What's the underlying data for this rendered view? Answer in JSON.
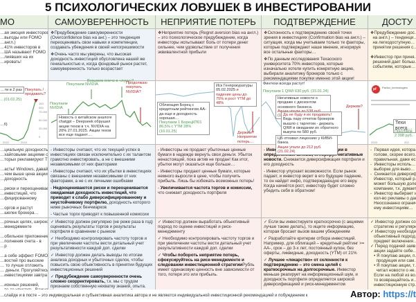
{
  "title": "5 ПСИХОЛОГИЧЕСКИХ ЛОВУШЕК В ИНВЕСТИРОВАНИИ",
  "columns": [
    {
      "header": "МО",
      "row1": "…ая эмоция инвесторов\n…выгоды или FOMO\n…англ.)\n…41% инвесторов в\n…ША называют FOMO\n…лиявших на их\n…ировать!",
      "chart": {
        "note": "…ти в 2 раз",
        "date": "…(01.02.25)",
        "question": "Покупать / продавать?",
        "yticks": [
          "100 000",
          "75 000",
          "50 000",
          "25 000",
          "0"
        ],
        "xticks": [
          "2022",
          "2024"
        ],
        "tail": "…б)"
      },
      "row2": "…циальную доходность\n…хайповыми акциями с\n…торых рекламируют ТГ-\n\n…асты! Windows, давай\n…чем выше цена акции,\n…доходность\n\n…риски и переоценивает\n…инвестиций, что\n…фицированному\n\n…оргов и растут\n…шелек брокера…",
      "row3": "…рочных целях, широкой\n…менеджменте\n\n…обильное приложение\n…полнения счета - в\n…р\n\n…а себе эффект FOMO,\n…востей про высокие\n… то лучше отложить\n… деньги. Прогуляйтесь\n…инвестициями завтра\n\n…ионных решений,\n…то-то упустить. Важно\n… рынке, а не выбор\n…а рынке!\n…арафон, а не спринт"
    },
    {
      "header": "САМОУВЕРЕННОСТЬ",
      "row1": [
        "Предубеждение самоуверенности (Overconfidence bias на анг.) – это тенденция переоценивать свои навыки и компетенции, создавать убеждения в своей непогрешимости",
        "Очень часто мы уверены, что высокая доходность инвестиций обусловлена нашей же гениальностью и, когда фондовый рынок растет, самоуверенность только возрастает"
      ],
      "chart": {
        "buy1": "Покупаем NVIDIA",
        "buy2": "Покупаем NVIDIA",
        "leverage": "Возьмем плечо в «луну»?",
        "continue": "Продолжаю покупать NVIDIA?",
        "news": "Новость о китайском аналоге chatgpt – Deepseek обрушил акции техов в т.ч. NVIDIA на 20% 27.01.2025. Акции техов все еще падают…",
        "yticks": [
          "150",
          "130",
          "110",
          "90",
          "70"
        ],
        "xticks": [
          "сент.",
          "нояб.",
          "янв."
        ]
      },
      "row2": [
        {
          "t": "Инвесторы считают, что их текущий успех в инвестициях связан исключительно с их талантом грамотно инвестировать, а не с внешними независимыми от них факторами"
        },
        {
          "t": "Инвесторы считают, что их убытки в инвестициях связаны с внешними независимыми от них факторами, а не с их личными ошибками"
        },
        {
          "b": "Недооцениваются риски и переоценивается ожидаемая доходность инвестиций, что приводит к слабо диверсифицированному и неустойчивому портфелю,",
          "t": " доходность которого ниже рыночных бенчмарков"
        },
        {
          "t": "Частые торги приводят к повышенной комиссии"
        }
      ],
      "row3": [
        {
          "t": "Инвестор должен регулярно (не реже раза в год) оценивать результаты торгов и результаты портфеля в сравнении с рынком"
        },
        {
          "t": "Необходимо контролировать частоту торгов и при увеличении частоты вести детальный учет результативности каждой доп. сделки"
        },
        {
          "t": "Инвестор должен делать выводы по итогам анализа доходных и убыточных сделок, чтобы повысить свою объективность в принятии будущих инвестиционных решений"
        },
        {
          "b": "Предубеждение самоуверенности очень сложно скорректировать,",
          "t": " т.к. мы с трудом признаем собственную нехватку знаний, опыта. Нам нужно запастись терпением и поработать над собой!"
        }
      ]
    },
    {
      "header": "НЕПРИЯТИЕ ПОТЕРЬ",
      "row1": [
        "Неприятие потерь (Regret aversion bias на англ.) – это психологическое предубеждение, когда инвесторы испытывают боль от потери денег сильнее, чем удовольствие от получения эквивалентной прибыли"
      ],
      "chart": {
        "bond": "Облигация Борец с кредитным рейтингом АА- да еще и доходность хорошая…",
        "buy": "Покупаем 1 БорецКП01 86,5% с YTM 28% (10.01.25)",
        "lawsuit_a": "Иск Генпрокуратуры 05.02.2025",
        "lawsuit_b": " и падение цены до 75% и рост YTM до 48%",
        "hold": "Держим? Неприятие потерь…"
      },
      "row2": [
        {
          "t": "Инвесторы не продают убыточные ценные бумаги в надежде вернуть свои деньги. Убыток ненастоящий, пока актив не продан! Как итог, убытки могут оказаться еще больше…"
        },
        {
          "t": "Инвесторы продают ценные бумаги, которые немного выросли в цене, чтобы получить прибыль. Лишь бы избежать возможных потерь!"
        },
        {
          "b": "Увеличивается частота торгов и комиссии,",
          "t": " что снижает доходность портфеля"
        }
      ],
      "row3": [
        {
          "t": "Инвестор должен выработать объективный подход по оценке инвестиций и риск-менеджменту"
        },
        {
          "t": "Необходимо контролировать частоту торгов и при увеличении частоты вести детальный учет результативности каждой доп. сделки"
        },
        {
          "t": "Рубль имеет одинаковую ценность вне зависимости от того, потеря это или прибыль. ",
          "b": "Чтобы побороть неприятие потерь, сфокусируйтесь на риск-менеджменте и следовании инвестиционной стратегии"
        }
      ]
    },
    {
      "header": "ПОДТВЕРЖДЕНИЕ",
      "row1": [
        "Склонность к подтверждению своей точки зрения в инвестициях (Confirmation bias на англ.) – ситуация, когда мы учитываем только те факторы, которые подтверждают наше мнение, игнорируя все остальные факторы…",
        "По данным исследования Техасского университета 70% инвесторов, которые изначально хотели купить конкретную акцию, выбирали аналитику брокеров только с рекомендациями покупки именно этой акции!"
      ],
      "chart": {
        "fintech": "Финтехи всегда растут!",
        "buy": "Покупаем 1 QIWI 630 руб. (15.01.24)",
        "neg_a": "Негативные новости о продаже с дисконтом основного бизнеса.",
        "neg_b": "Акции упали до 538 руб. (19.01.24)",
        "hold": "Держим?",
        "deny_a": "Да не буду я их продавать!",
        "deny_b": " Ведь пару отчетов брокеров вышло с таргетом - держать QIWI в ожидании их обратного выкупа по 580 руб.",
        "cb_a": "ЦБ отозвал лицензию у КИВИ-банка.",
        "cb_b": "Акции упали до 212 руб. (21.02.24)"
      },
      "row2": [
        {
          "b": "Инвестор предпочитает инвестиции в определенные активы, игнорируя негативные новости.",
          "t": " Снижается диверсификация портфеля и его доходность"
        },
        {
          "t": "Инвестор упускает возможности. Если рынок падает, и инвестор верит в его будущее падение, то он найдет инфо, подтверждающую его веру. Когда начнётся рост, инвестору будет сложно убедить себя в обратном!"
        }
      ],
      "row3": [
        {
          "t": "Если вы инвестируете краткосрочно (с акциями лучше также делать), то ищите информацию, которая бросает вызов вашим убеждениям"
        },
        {
          "t": "Разработайте критерии отбора инвестиций. Например, для облигаций – кредитный рейтинг >= АА-, срок – до 3-х лет, постоянный купон, без оферты, ликвидные, доходность (YTM) от 21%"
        },
        {
          "b": "Лучшее «лекарство» от склонности к подтверждению – это смена целей с краткосрочных на долгосрочные.",
          "t": " Инвестор меньше реагирует на информационный шум, и доходность портфеля определяется широкой диверсификацией и риск-менеджментом"
        }
      ]
    },
    {
      "header": "ДОСТУ",
      "row1": "❖Предубеждение дос…\n  на англ.) – тенденци…\n  на легкодоступную…\n  принятии решения с…\n\n❖Инвестор при приня…\n  решений дает больш…\n  событиям, которые…",
      "chart": {
        "logo": "pf",
        "account": "Pavlov_technologies",
        "caption": "Техи всегд…",
        "buy": "Покупаем\n2 398 руб.",
        "xticks": [
          "2023",
          "202"
        ]
      },
      "row2": "-  Первая идея, котора…\n   голове, скорее всего…\n   правильная, даже ес…\n-  Инвесторы исполь…\n   выборке для выво…\n-  Снижается диверсиф…\n   Инвестор, который р…\n   может большую доле…\n   компании, т.к. думает…\n-  Инвестор выбирает и…\n   кол-во рекламы о дан…\n   Неосознанно огранич…\n   ему инвестициям…",
      "row3": "✓ Инвестор должен со…\n   стратегию и регулярн…\n✓ Инвестору необходи…\n   объективный подход…\n   предмет включения…\n✓ Перед подачей заяв…\n   акции задайте себе…\n   • Я покупаю акции, п…\n     продукция или сам…\n   • Я покупаю акции, т…\n     читал новости о не…\n   Если на любой из во…\n   то возвращайтесь и…\n   инвестиционную стр…"
    }
  ],
  "footer": {
    "disclaimer": "…слайде и в посте – это индивидуальная и субъективная аналитика автора и не являются индивидуальной инвестиционной рекомендацией и побуждением к",
    "author_label": "Автор: ",
    "author_link": "https://t"
  },
  "colors": {
    "header_bg": "#e8f0e2",
    "green": "#4b9b4b",
    "red": "#b52a2a",
    "link": "#2f7fd0"
  }
}
